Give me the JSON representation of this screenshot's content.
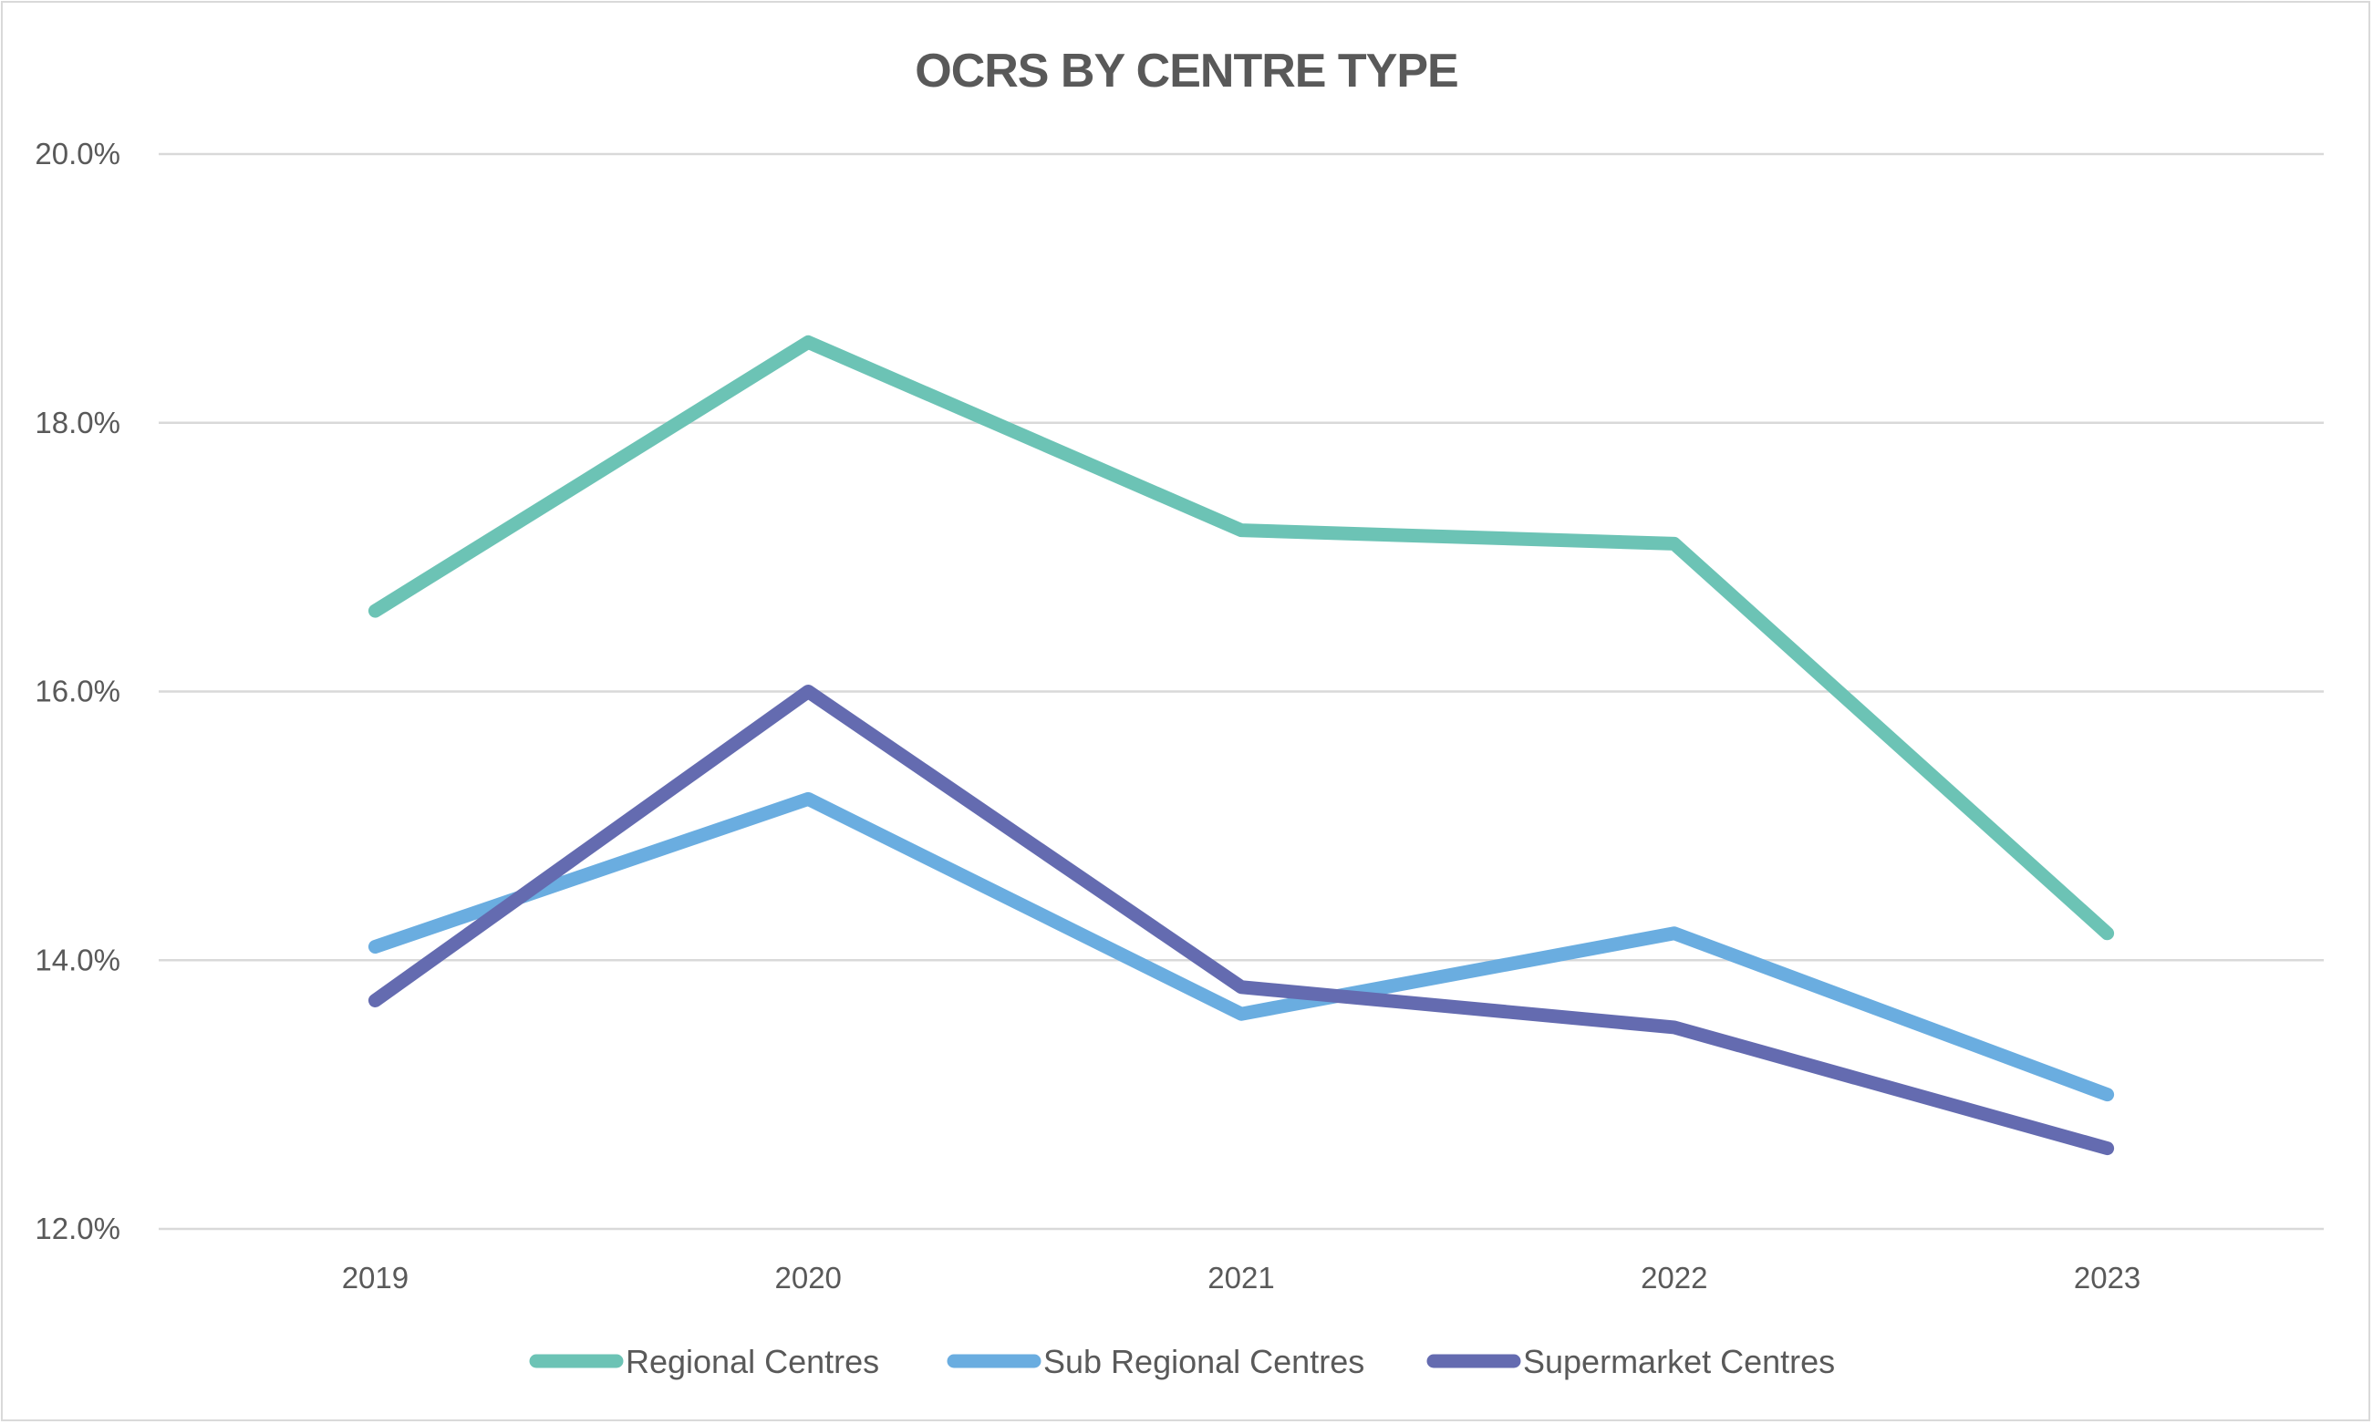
{
  "chart_data": {
    "type": "line",
    "title": "OCRS BY CENTRE TYPE",
    "xlabel": "",
    "ylabel": "",
    "categories": [
      "2019",
      "2020",
      "2021",
      "2022",
      "2023"
    ],
    "ylim": [
      12.0,
      20.0
    ],
    "yticks": [
      12.0,
      14.0,
      16.0,
      18.0,
      20.0
    ],
    "ytick_labels": [
      "12.0%",
      "14.0%",
      "16.0%",
      "18.0%",
      "20.0%"
    ],
    "grid": "horizontal",
    "legend": "bottom",
    "series": [
      {
        "name": "Regional Centres",
        "color": "#6cc3b5",
        "values": [
          16.6,
          18.6,
          17.2,
          17.1,
          14.2
        ]
      },
      {
        "name": "Sub Regional Centres",
        "color": "#6aade0",
        "values": [
          14.1,
          15.2,
          13.6,
          14.2,
          13.0
        ]
      },
      {
        "name": "Supermarket Centres",
        "color": "#646bb0",
        "values": [
          13.7,
          16.0,
          13.8,
          13.5,
          12.6
        ]
      }
    ]
  }
}
